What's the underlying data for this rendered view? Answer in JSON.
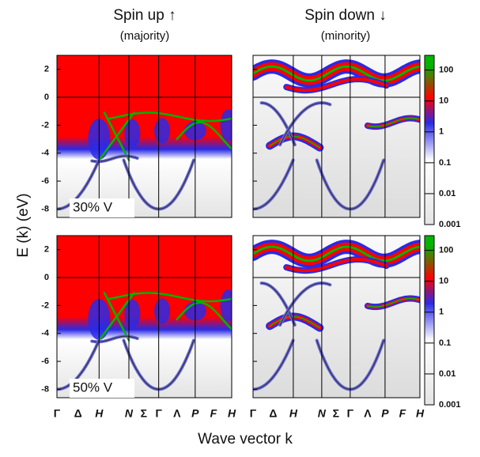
{
  "chart_data": {
    "type": "spectral-heatmap",
    "columns": [
      {
        "title": "Spin up ↑",
        "subtitle": "(majority)"
      },
      {
        "title": "Spin down ↓",
        "subtitle": "(minority)"
      }
    ],
    "rows": [
      "30% V",
      "50% V"
    ],
    "ylabel": "E (k) (eV)",
    "xlabel": "Wave vector k",
    "categories": [
      "Γ",
      "Δ",
      "H",
      "N",
      "Σ",
      "Γ",
      "Λ",
      "P",
      "F",
      "H"
    ],
    "ylim": [
      -8.6,
      3
    ],
    "yticks": [
      2,
      0,
      -2,
      -4,
      -6,
      -8
    ],
    "colorbar": {
      "log": true,
      "lim": [
        0.001,
        300
      ],
      "ticks": [
        100,
        10,
        1,
        0.1,
        0.01,
        0.001
      ],
      "colors": [
        "#e4e4e4",
        "#ffffff",
        "#2a2ae6",
        "#ff0000",
        "#00b400"
      ]
    }
  }
}
